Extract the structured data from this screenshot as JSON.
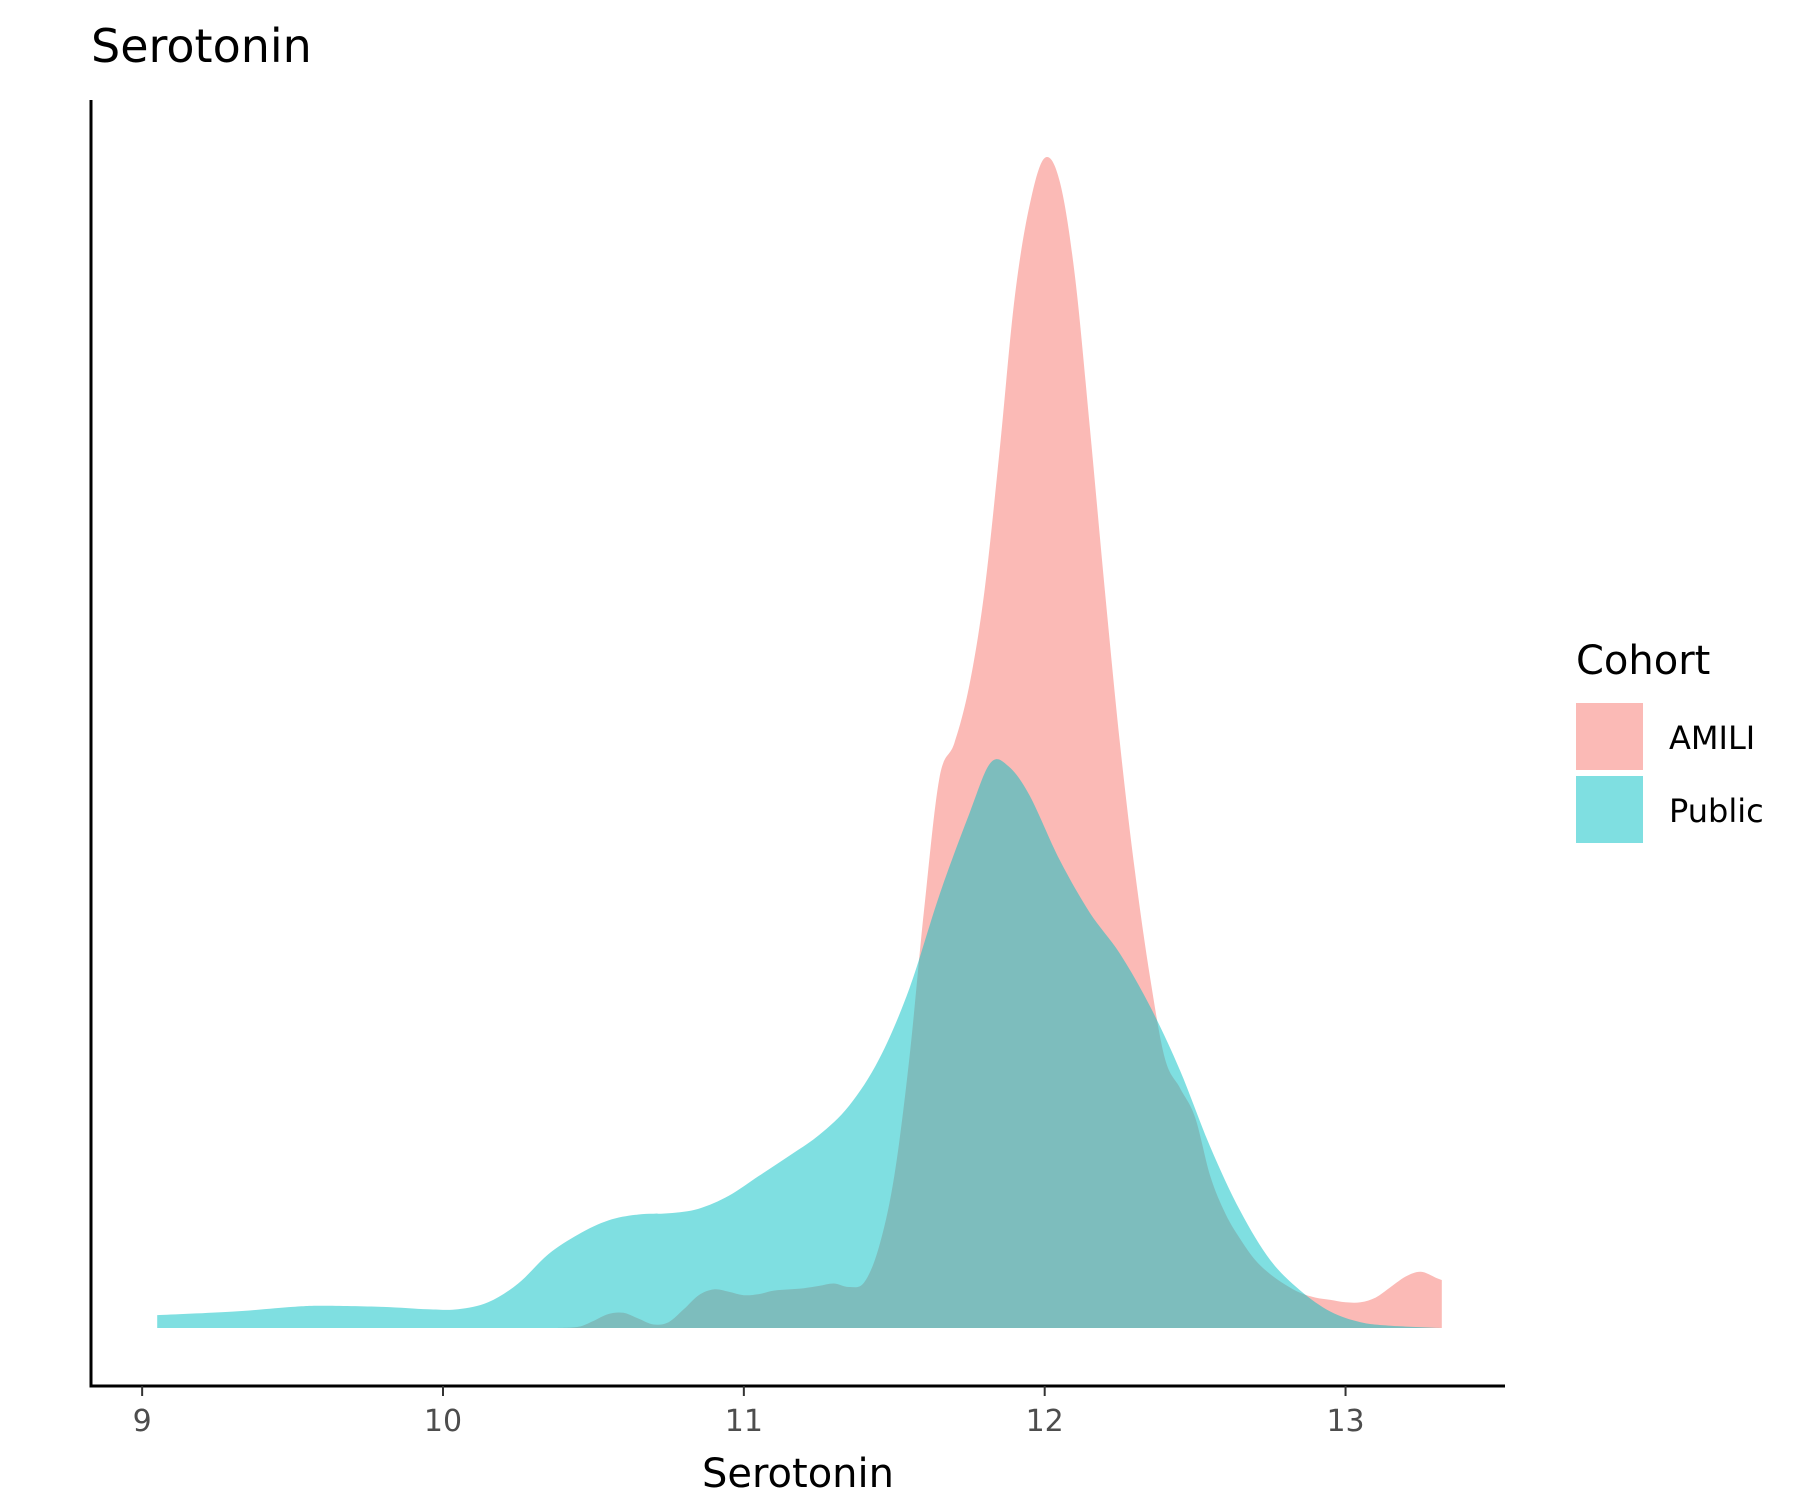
{
  "chart_data": {
    "type": "area",
    "title": "Serotonin",
    "xlabel": "Serotonin",
    "ylabel": "",
    "xlim": [
      8.83,
      13.53
    ],
    "ylim": [
      0,
      1.0
    ],
    "x_ticks": [
      9,
      10,
      11,
      12,
      13
    ],
    "x_tick_labels": [
      "9",
      "10",
      "11",
      "12",
      "13"
    ],
    "grid": false,
    "legend": {
      "title": "Cohort",
      "position": "right"
    },
    "series": [
      {
        "name": "AMILI",
        "color": "#F8766D",
        "opacity": 0.5,
        "points": [
          [
            10.38,
            0.0
          ],
          [
            10.45,
            0.001
          ],
          [
            10.5,
            0.006
          ],
          [
            10.55,
            0.012
          ],
          [
            10.6,
            0.013
          ],
          [
            10.65,
            0.008
          ],
          [
            10.7,
            0.003
          ],
          [
            10.75,
            0.005
          ],
          [
            10.8,
            0.016
          ],
          [
            10.85,
            0.028
          ],
          [
            10.9,
            0.033
          ],
          [
            10.95,
            0.031
          ],
          [
            11.0,
            0.028
          ],
          [
            11.05,
            0.029
          ],
          [
            11.1,
            0.032
          ],
          [
            11.15,
            0.033
          ],
          [
            11.2,
            0.034
          ],
          [
            11.25,
            0.036
          ],
          [
            11.3,
            0.038
          ],
          [
            11.35,
            0.035
          ],
          [
            11.4,
            0.039
          ],
          [
            11.45,
            0.07
          ],
          [
            11.5,
            0.13
          ],
          [
            11.55,
            0.23
          ],
          [
            11.6,
            0.36
          ],
          [
            11.65,
            0.47
          ],
          [
            11.7,
            0.5
          ],
          [
            11.75,
            0.55
          ],
          [
            11.8,
            0.63
          ],
          [
            11.85,
            0.75
          ],
          [
            11.9,
            0.88
          ],
          [
            11.95,
            0.96
          ],
          [
            12.0,
            1.0
          ],
          [
            12.05,
            0.98
          ],
          [
            12.1,
            0.9
          ],
          [
            12.15,
            0.77
          ],
          [
            12.2,
            0.63
          ],
          [
            12.25,
            0.5
          ],
          [
            12.3,
            0.39
          ],
          [
            12.35,
            0.3
          ],
          [
            12.4,
            0.23
          ],
          [
            12.45,
            0.205
          ],
          [
            12.5,
            0.18
          ],
          [
            12.55,
            0.13
          ],
          [
            12.6,
            0.098
          ],
          [
            12.65,
            0.076
          ],
          [
            12.7,
            0.058
          ],
          [
            12.75,
            0.046
          ],
          [
            12.8,
            0.037
          ],
          [
            12.85,
            0.03
          ],
          [
            12.9,
            0.026
          ],
          [
            12.95,
            0.024
          ],
          [
            13.0,
            0.022
          ],
          [
            13.05,
            0.022
          ],
          [
            13.1,
            0.026
          ],
          [
            13.15,
            0.035
          ],
          [
            13.2,
            0.044
          ],
          [
            13.25,
            0.048
          ],
          [
            13.3,
            0.043
          ],
          [
            13.32,
            0.041
          ]
        ]
      },
      {
        "name": "Public",
        "color": "#00BFC4",
        "opacity": 0.5,
        "points": [
          [
            9.05,
            0.011
          ],
          [
            9.3,
            0.014
          ],
          [
            9.5,
            0.018
          ],
          [
            9.6,
            0.019
          ],
          [
            9.8,
            0.018
          ],
          [
            9.95,
            0.016
          ],
          [
            10.05,
            0.016
          ],
          [
            10.15,
            0.022
          ],
          [
            10.25,
            0.038
          ],
          [
            10.35,
            0.063
          ],
          [
            10.45,
            0.08
          ],
          [
            10.55,
            0.092
          ],
          [
            10.65,
            0.097
          ],
          [
            10.75,
            0.098
          ],
          [
            10.85,
            0.102
          ],
          [
            10.95,
            0.113
          ],
          [
            11.05,
            0.13
          ],
          [
            11.15,
            0.147
          ],
          [
            11.25,
            0.165
          ],
          [
            11.35,
            0.19
          ],
          [
            11.45,
            0.23
          ],
          [
            11.55,
            0.29
          ],
          [
            11.65,
            0.37
          ],
          [
            11.75,
            0.44
          ],
          [
            11.82,
            0.483
          ],
          [
            11.88,
            0.48
          ],
          [
            11.95,
            0.455
          ],
          [
            12.05,
            0.4
          ],
          [
            12.15,
            0.355
          ],
          [
            12.25,
            0.32
          ],
          [
            12.35,
            0.275
          ],
          [
            12.45,
            0.22
          ],
          [
            12.55,
            0.155
          ],
          [
            12.65,
            0.1
          ],
          [
            12.75,
            0.058
          ],
          [
            12.85,
            0.032
          ],
          [
            12.95,
            0.014
          ],
          [
            13.05,
            0.005
          ],
          [
            13.15,
            0.002
          ],
          [
            13.32,
            0.0
          ]
        ]
      }
    ]
  }
}
